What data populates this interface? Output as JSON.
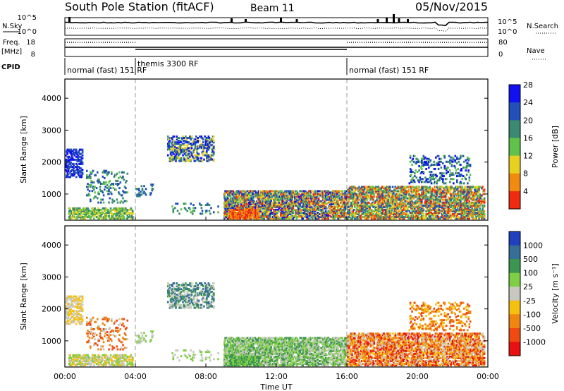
{
  "header": {
    "station": "South Pole Station (fitACF)",
    "beam": "Beam 11",
    "date": "05/Nov/2015"
  },
  "status_panel": {
    "nsky_label": "N.Sky",
    "nsearch_label": "N.Search",
    "freq_label": "Freq.",
    "freq_unit": "[MHz]",
    "nave_label": "Nave",
    "cpid_label": "CPID",
    "noise_ticks": [
      "10^5",
      "10^0"
    ],
    "freq_ticks": [
      "18",
      "8"
    ],
    "nave_ticks": [
      "80",
      "0"
    ],
    "cpid_segments": [
      {
        "start": 0,
        "end": 4,
        "label": "normal (fast) 151 RF"
      },
      {
        "start": 4,
        "end": 16,
        "label": "themis 3300 RF"
      },
      {
        "start": 16,
        "end": 24,
        "label": "normal (fast) 151 RF"
      }
    ]
  },
  "chart_data": [
    {
      "type": "heatmap",
      "name": "power",
      "ylabel": "Slant Range [km]",
      "y_ticks": [
        "1000",
        "2000",
        "3000",
        "4000"
      ],
      "ylim": [
        180,
        4600
      ],
      "colorbar_label": "Power [dB]",
      "colorbar_ticks": [
        "4",
        "8",
        "12",
        "16",
        "20",
        "24",
        "28"
      ],
      "colorbar_colors": [
        "#1010f0",
        "#2050b8",
        "#3a8a72",
        "#5fc24a",
        "#e8d020",
        "#f08a10",
        "#ee2b10"
      ]
    },
    {
      "type": "heatmap",
      "name": "velocity",
      "ylabel": "Slant Range [km]",
      "y_ticks": [
        "1000",
        "2000",
        "3000",
        "4000"
      ],
      "ylim": [
        180,
        4600
      ],
      "colorbar_label": "Velocity [m s⁻¹]",
      "colorbar_ticks": [
        "1000",
        "500",
        "100",
        "25",
        "-25",
        "-100",
        "-500",
        "-1000"
      ],
      "colorbar_colors": [
        "#2040c0",
        "#356f98",
        "#3d9650",
        "#7fcf45",
        "#c8c8c0",
        "#f5c010",
        "#f08510",
        "#ef4a10",
        "#e81010"
      ]
    }
  ],
  "x_axis": {
    "label": "Time UT",
    "ticks": [
      "00:00",
      "04:00",
      "08:00",
      "12:00",
      "16:00",
      "20:00",
      "00:00"
    ],
    "xlim_hours": [
      0,
      24
    ],
    "mode_change_hours": [
      4,
      16
    ]
  }
}
